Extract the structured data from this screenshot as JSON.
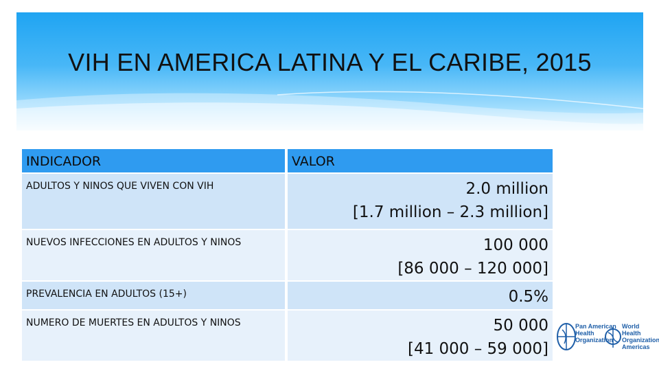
{
  "title": "VIH EN AMERICA LATINA Y EL CARIBE, 2015",
  "table": {
    "headers": [
      "INDICADOR",
      "VALOR"
    ],
    "rows": [
      {
        "indicator": "ADULTOS Y NINOS QUE VIVEN CON VIH",
        "value": "2.0 million",
        "range": "[1.7 million – 2.3 million]"
      },
      {
        "indicator": "NUEVOS INFECCIONES EN ADULTOS Y NINOS",
        "value": "100 000",
        "range": "[86 000 – 120 000]"
      },
      {
        "indicator": "PREVALENCIA EN ADULTOS (15+)",
        "value": "0.5%",
        "range": ""
      },
      {
        "indicator": "NUMERO DE MUERTES EN ADULTOS Y NINOS",
        "value": "50 000",
        "range": "[41 000 – 59 000]"
      }
    ]
  },
  "logos": {
    "paho": [
      "Pan American",
      "Health",
      "Organization"
    ],
    "who": [
      "World Health",
      "Organization",
      "Americas"
    ]
  },
  "colors": {
    "banner": "#2aa6f3",
    "header": "#2f9bf0",
    "row_dark": "#cfe4f8",
    "row_light": "#e7f1fb"
  }
}
